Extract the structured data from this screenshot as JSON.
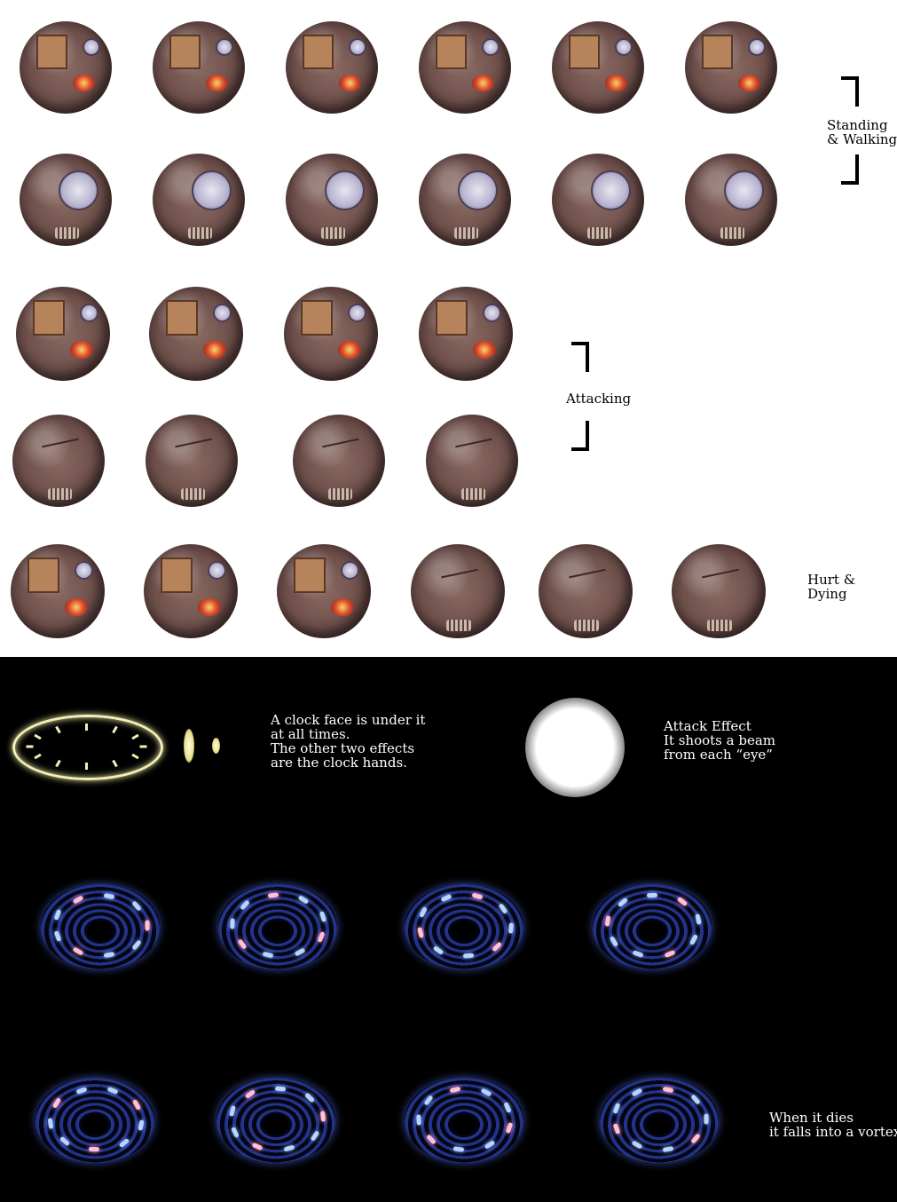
{
  "labels": {
    "standing_walking": "Standing\n& Walking",
    "attacking": "Attacking",
    "hurt_dying": "Hurt &\nDying",
    "clock_note": "A clock face is under it\nat all times.\nThe other two effects\nare the clock hands.",
    "attack_effect_note": "Attack Effect\nIt shoots a beam\nfrom each “eye”",
    "vortex_note": "When it dies\nit falls into a vortex"
  },
  "sprites": {
    "standing_front": [
      "sprite",
      "sprite",
      "sprite",
      "sprite",
      "sprite",
      "sprite"
    ],
    "standing_back": [
      "sprite",
      "sprite",
      "sprite",
      "sprite",
      "sprite",
      "sprite"
    ],
    "attack_front": [
      "sprite",
      "sprite",
      "sprite",
      "sprite"
    ],
    "attack_back": [
      "sprite",
      "sprite",
      "sprite",
      "sprite"
    ],
    "hurt": [
      "sprite",
      "sprite",
      "sprite",
      "sprite",
      "sprite",
      "sprite"
    ]
  },
  "colors": {
    "top_background": "#ffffff",
    "bottom_background": "#000000",
    "clock_face": "#f3efb8",
    "vortex_blue": "#7aa6ff",
    "vortex_pink": "#ff8fb8"
  }
}
